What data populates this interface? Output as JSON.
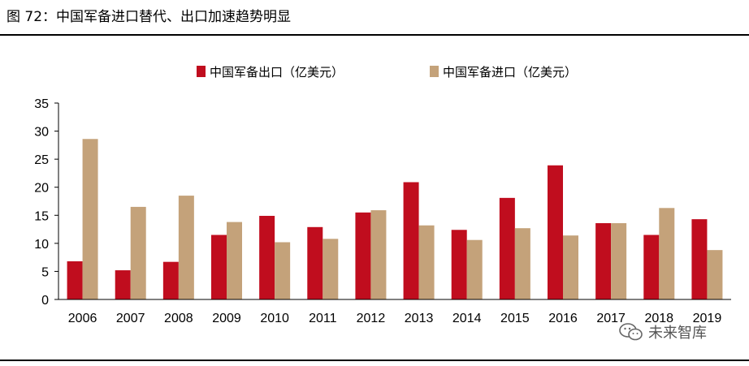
{
  "figure_title": "图 72：中国军备进口替代、出口加速趋势明显",
  "watermark_text": "未来智库",
  "colors": {
    "export": "#C00D1E",
    "import": "#C4A27A",
    "axis": "#000000"
  },
  "chart_data": {
    "type": "bar",
    "categories": [
      "2006",
      "2007",
      "2008",
      "2009",
      "2010",
      "2011",
      "2012",
      "2013",
      "2014",
      "2015",
      "2016",
      "2017",
      "2018",
      "2019"
    ],
    "series": [
      {
        "name": "中国军备出口（亿美元）",
        "values": [
          6.8,
          5.2,
          6.7,
          11.5,
          14.9,
          12.9,
          15.5,
          20.9,
          12.4,
          18.1,
          23.9,
          13.6,
          11.5,
          14.3
        ]
      },
      {
        "name": "中国军备进口（亿美元）",
        "values": [
          28.6,
          16.5,
          18.5,
          13.8,
          10.2,
          10.8,
          15.9,
          13.2,
          10.6,
          12.7,
          11.4,
          13.6,
          16.3,
          8.8
        ]
      }
    ],
    "ylim": [
      0,
      35
    ],
    "yticks": [
      0,
      5,
      10,
      15,
      20,
      25,
      30,
      35
    ],
    "xlabel": "",
    "ylabel": "",
    "legend_position": "top-center",
    "grid": false
  }
}
